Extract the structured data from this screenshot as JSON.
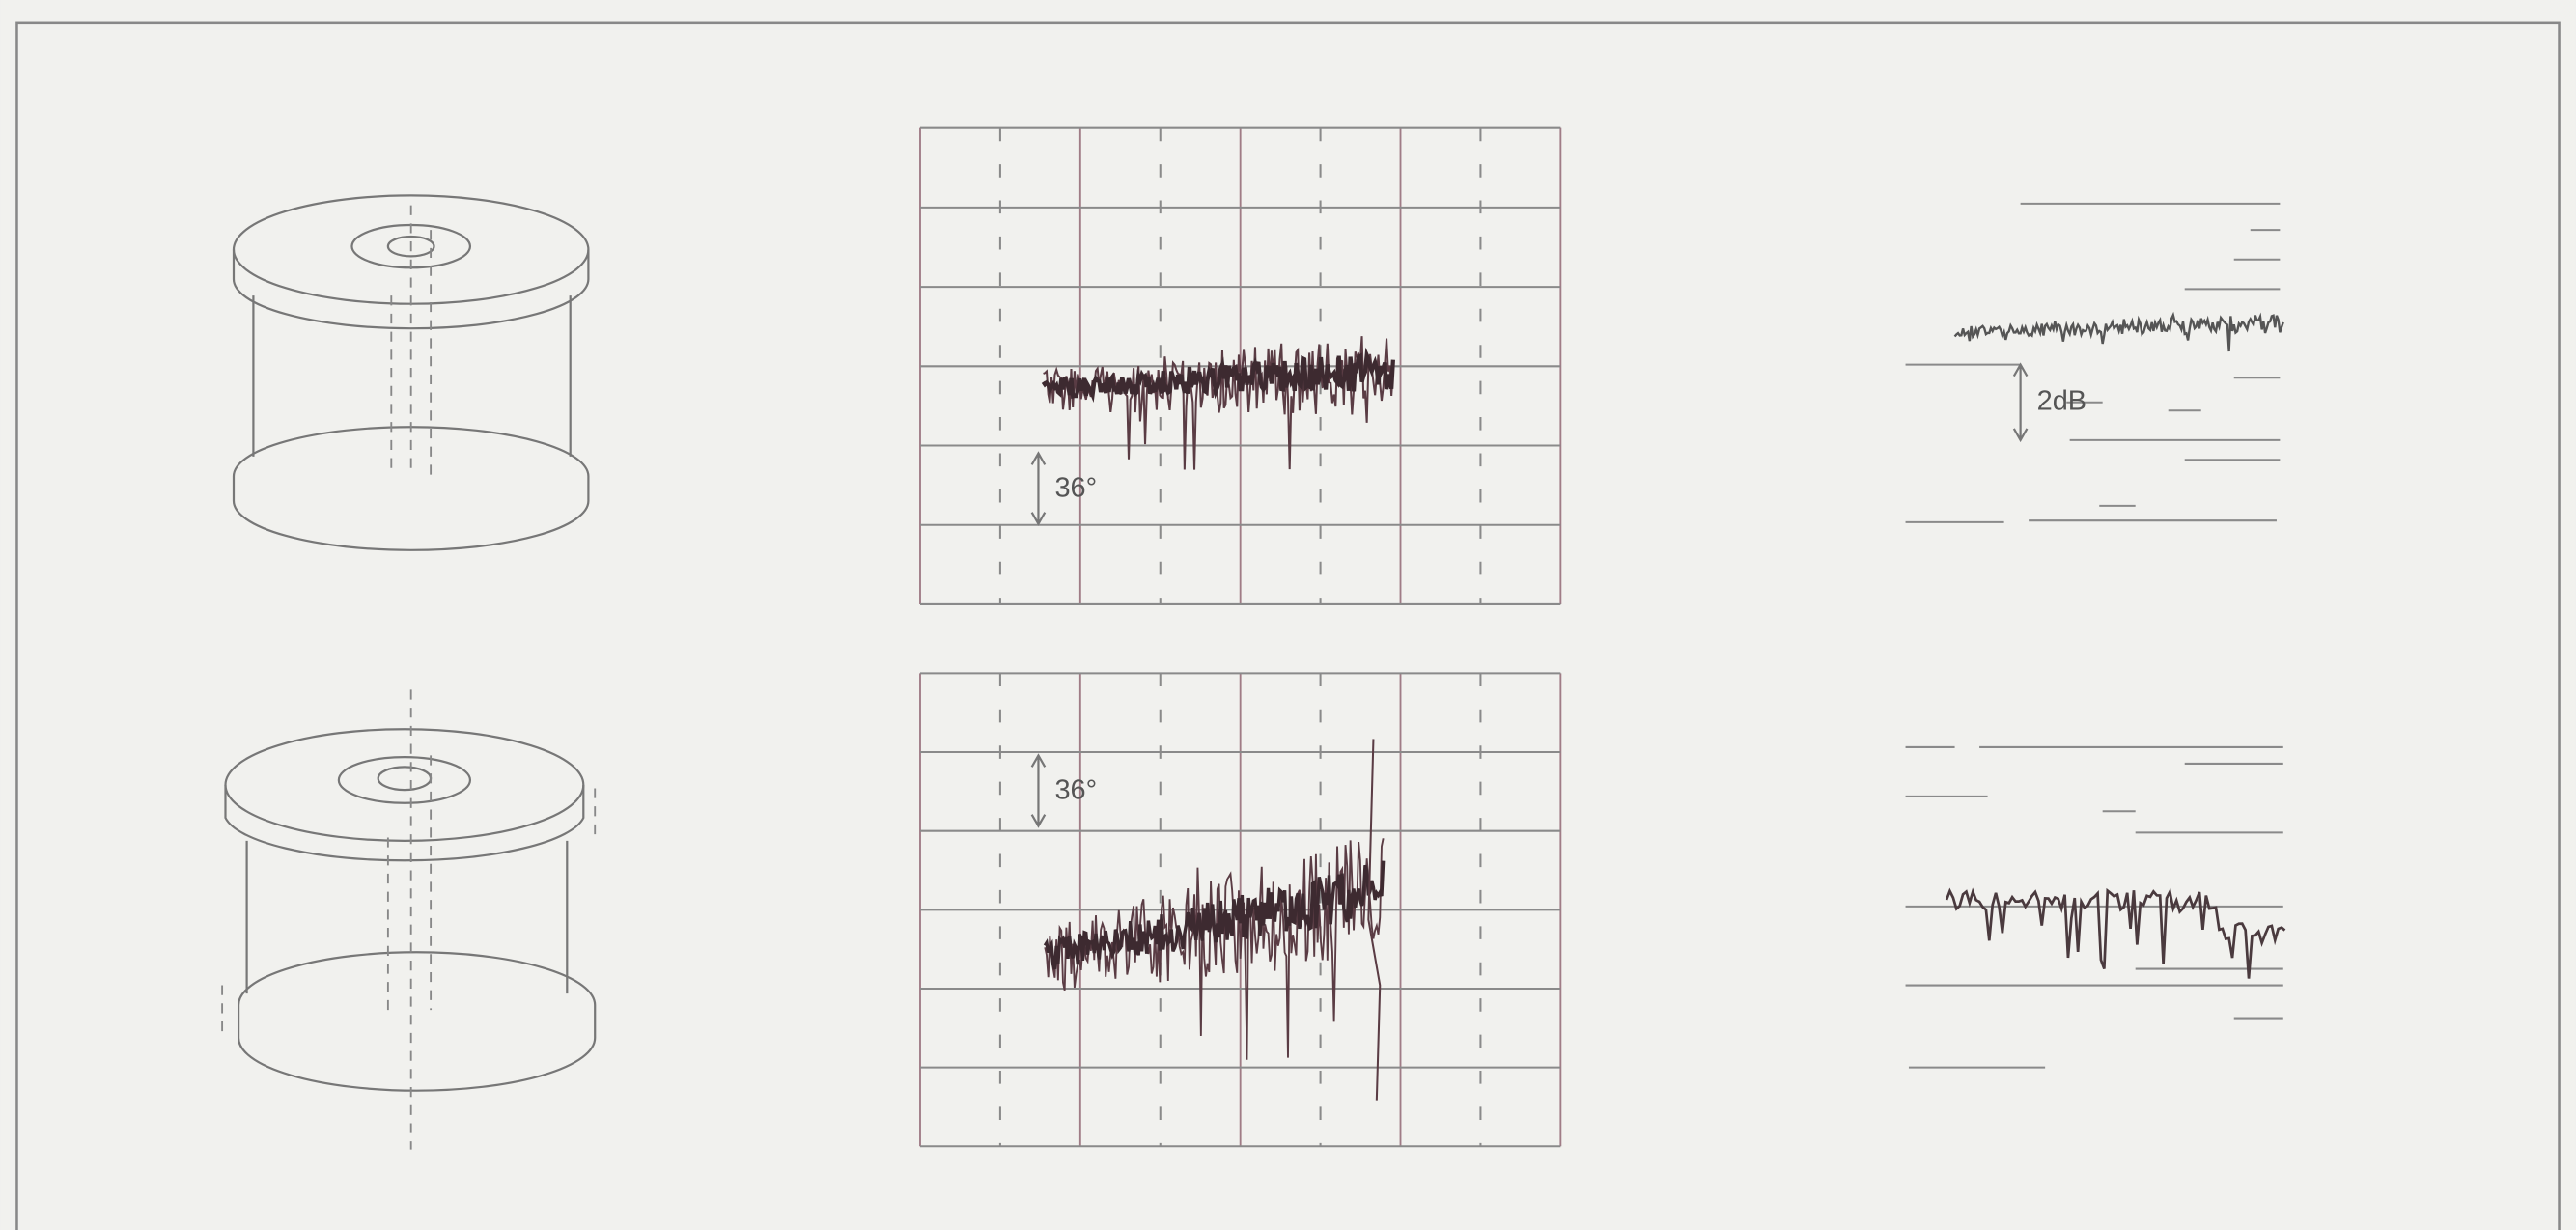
{
  "figure": {
    "upper_phase_label": "36°",
    "upper_amplitude_label": "2dB",
    "lower_phase_label": "36°"
  }
}
